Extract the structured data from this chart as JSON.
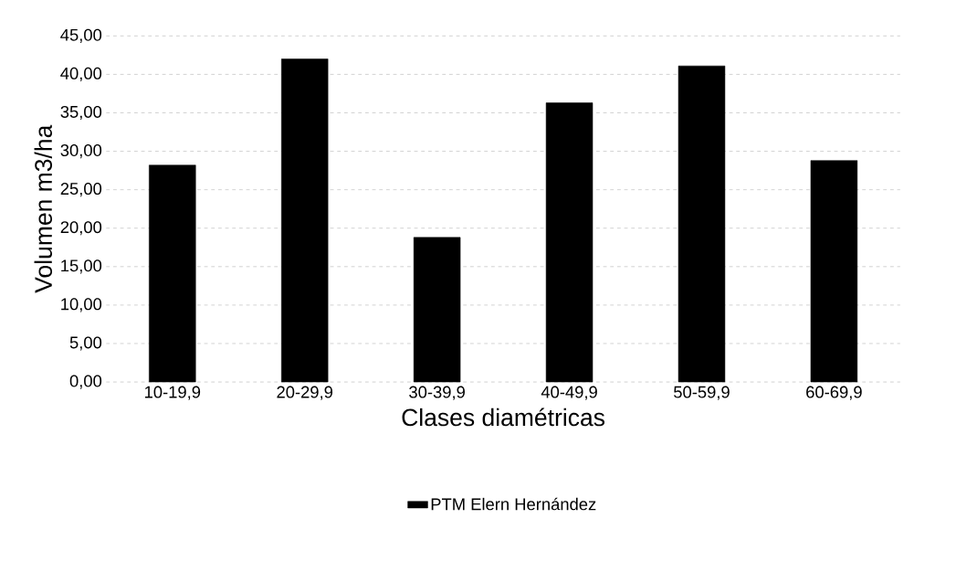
{
  "chart_data": {
    "type": "bar",
    "xlabel": "Clases diamétricas",
    "ylabel": "Volumen m3/ha",
    "categories": [
      "10-19,9",
      "20-29,9",
      "30-39,9",
      "40-49,9",
      "50-59,9",
      "60-69,9"
    ],
    "series": [
      {
        "name": "PTM Elern Hernández",
        "color": "#000000",
        "values": [
          28.2,
          42.0,
          18.8,
          36.3,
          41.1,
          28.8
        ]
      }
    ],
    "ylim": [
      0,
      45
    ],
    "yticks": [
      {
        "value": 0,
        "label": "0,00"
      },
      {
        "value": 5,
        "label": "5,00"
      },
      {
        "value": 10,
        "label": "10,00"
      },
      {
        "value": 15,
        "label": "15,00"
      },
      {
        "value": 20,
        "label": "20,00"
      },
      {
        "value": 25,
        "label": "25,00"
      },
      {
        "value": 30,
        "label": "30,00"
      },
      {
        "value": 35,
        "label": "35,00"
      },
      {
        "value": 40,
        "label": "40,00"
      },
      {
        "value": 45,
        "label": "45,00"
      }
    ],
    "grid": "y",
    "legend": "bottom"
  }
}
